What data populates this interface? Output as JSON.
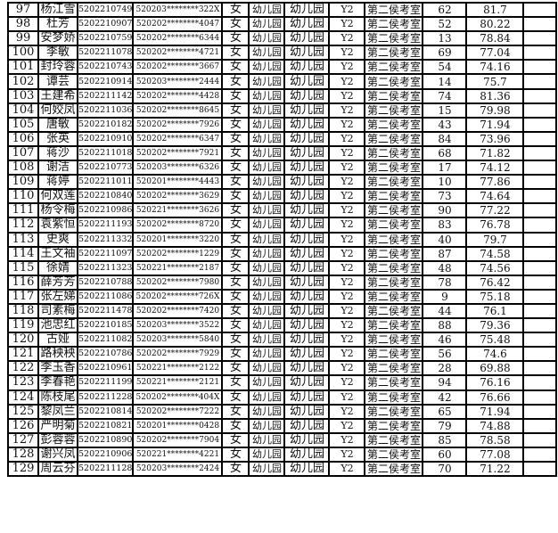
{
  "rows": [
    {
      "no": "97",
      "name": "杨江雪",
      "exam_id": "5202210749",
      "id_card": "520203********322X",
      "gender": "女",
      "unit": "幼儿园",
      "position": "幼儿园",
      "code": "Y2",
      "room": "第二侯考室",
      "seat": "62",
      "score": "81.7"
    },
    {
      "no": "98",
      "name": "杜芳",
      "exam_id": "5202210907",
      "id_card": "520202********4047",
      "gender": "女",
      "unit": "幼儿园",
      "position": "幼儿园",
      "code": "Y2",
      "room": "第二侯考室",
      "seat": "52",
      "score": "80.22"
    },
    {
      "no": "99",
      "name": "安梦娇",
      "exam_id": "5202210759",
      "id_card": "520202********6344",
      "gender": "女",
      "unit": "幼儿园",
      "position": "幼儿园",
      "code": "Y2",
      "room": "第二侯考室",
      "seat": "13",
      "score": "78.84"
    },
    {
      "no": "100",
      "name": "李敏",
      "exam_id": "5202211078",
      "id_card": "520202********4721",
      "gender": "女",
      "unit": "幼儿园",
      "position": "幼儿园",
      "code": "Y2",
      "room": "第二侯考室",
      "seat": "69",
      "score": "77.04"
    },
    {
      "no": "101",
      "name": "封玲蓉",
      "exam_id": "5202210743",
      "id_card": "520202********3667",
      "gender": "女",
      "unit": "幼儿园",
      "position": "幼儿园",
      "code": "Y2",
      "room": "第二侯考室",
      "seat": "54",
      "score": "74.16"
    },
    {
      "no": "102",
      "name": "谭芸",
      "exam_id": "5202210914",
      "id_card": "520203********2444",
      "gender": "女",
      "unit": "幼儿园",
      "position": "幼儿园",
      "code": "Y2",
      "room": "第二侯考室",
      "seat": "14",
      "score": "75.7"
    },
    {
      "no": "103",
      "name": "王建希",
      "exam_id": "5202211142",
      "id_card": "520202********4428",
      "gender": "女",
      "unit": "幼儿园",
      "position": "幼儿园",
      "code": "Y2",
      "room": "第二侯考室",
      "seat": "74",
      "score": "81.36"
    },
    {
      "no": "104",
      "name": "何姣凤",
      "exam_id": "5202211036",
      "id_card": "520202********8645",
      "gender": "女",
      "unit": "幼儿园",
      "position": "幼儿园",
      "code": "Y2",
      "room": "第二侯考室",
      "seat": "15",
      "score": "79.98"
    },
    {
      "no": "105",
      "name": "唐敏",
      "exam_id": "5202210182",
      "id_card": "520202********7926",
      "gender": "女",
      "unit": "幼儿园",
      "position": "幼儿园",
      "code": "Y2",
      "room": "第二侯考室",
      "seat": "43",
      "score": "71.94"
    },
    {
      "no": "106",
      "name": "张英",
      "exam_id": "5202210910",
      "id_card": "520202********6347",
      "gender": "女",
      "unit": "幼儿园",
      "position": "幼儿园",
      "code": "Y2",
      "room": "第二侯考室",
      "seat": "84",
      "score": "73.96"
    },
    {
      "no": "107",
      "name": "蒋沙",
      "exam_id": "5202211018",
      "id_card": "520202********7921",
      "gender": "女",
      "unit": "幼儿园",
      "position": "幼儿园",
      "code": "Y2",
      "room": "第二侯考室",
      "seat": "68",
      "score": "71.82"
    },
    {
      "no": "108",
      "name": "谢洁",
      "exam_id": "5202210773",
      "id_card": "520203********6326",
      "gender": "女",
      "unit": "幼儿园",
      "position": "幼儿园",
      "code": "Y2",
      "room": "第二侯考室",
      "seat": "17",
      "score": "74.12"
    },
    {
      "no": "109",
      "name": "蒋婷",
      "exam_id": "5202211011",
      "id_card": "520201********4443",
      "gender": "女",
      "unit": "幼儿园",
      "position": "幼儿园",
      "code": "Y2",
      "room": "第二侯考室",
      "seat": "10",
      "score": "77.86"
    },
    {
      "no": "110",
      "name": "何双莲",
      "exam_id": "5202210840",
      "id_card": "520202********3629",
      "gender": "女",
      "unit": "幼儿园",
      "position": "幼儿园",
      "code": "Y2",
      "room": "第二侯考室",
      "seat": "73",
      "score": "74.64"
    },
    {
      "no": "111",
      "name": "杨令梅",
      "exam_id": "5202210986",
      "id_card": "520221********3626",
      "gender": "女",
      "unit": "幼儿园",
      "position": "幼儿园",
      "code": "Y2",
      "room": "第二侯考室",
      "seat": "90",
      "score": "77.22"
    },
    {
      "no": "112",
      "name": "袁紫恒",
      "exam_id": "5202211193",
      "id_card": "520202********8720",
      "gender": "女",
      "unit": "幼儿园",
      "position": "幼儿园",
      "code": "Y2",
      "room": "第二侯考室",
      "seat": "83",
      "score": "76.78"
    },
    {
      "no": "113",
      "name": "史爽",
      "exam_id": "5202211332",
      "id_card": "520201********3220",
      "gender": "女",
      "unit": "幼儿园",
      "position": "幼儿园",
      "code": "Y2",
      "room": "第二侯考室",
      "seat": "40",
      "score": "79.7"
    },
    {
      "no": "114",
      "name": "王文袖",
      "exam_id": "5202211097",
      "id_card": "520202********1229",
      "gender": "女",
      "unit": "幼儿园",
      "position": "幼儿园",
      "code": "Y2",
      "room": "第二侯考室",
      "seat": "87",
      "score": "74.58"
    },
    {
      "no": "115",
      "name": "徐婧",
      "exam_id": "5202211323",
      "id_card": "520221********2187",
      "gender": "女",
      "unit": "幼儿园",
      "position": "幼儿园",
      "code": "Y2",
      "room": "第二侯考室",
      "seat": "48",
      "score": "74.56"
    },
    {
      "no": "116",
      "name": "薛芳芳",
      "exam_id": "5202210788",
      "id_card": "520202********7980",
      "gender": "女",
      "unit": "幼儿园",
      "position": "幼儿园",
      "code": "Y2",
      "room": "第二侯考室",
      "seat": "78",
      "score": "76.42"
    },
    {
      "no": "117",
      "name": "张左娣",
      "exam_id": "5202211086",
      "id_card": "520202********726X",
      "gender": "女",
      "unit": "幼儿园",
      "position": "幼儿园",
      "code": "Y2",
      "room": "第二侯考室",
      "seat": "9",
      "score": "75.18"
    },
    {
      "no": "118",
      "name": "司素梅",
      "exam_id": "5202211478",
      "id_card": "520202********7420",
      "gender": "女",
      "unit": "幼儿园",
      "position": "幼儿园",
      "code": "Y2",
      "room": "第二侯考室",
      "seat": "44",
      "score": "76.1"
    },
    {
      "no": "119",
      "name": "池忠红",
      "exam_id": "5202210185",
      "id_card": "520203********3522",
      "gender": "女",
      "unit": "幼儿园",
      "position": "幼儿园",
      "code": "Y2",
      "room": "第二侯考室",
      "seat": "88",
      "score": "79.36"
    },
    {
      "no": "120",
      "name": "古娅",
      "exam_id": "5202211082",
      "id_card": "520203********5840",
      "gender": "女",
      "unit": "幼儿园",
      "position": "幼儿园",
      "code": "Y2",
      "room": "第二侯考室",
      "seat": "46",
      "score": "75.48"
    },
    {
      "no": "121",
      "name": "路秧秧",
      "exam_id": "5202210786",
      "id_card": "520202********7929",
      "gender": "女",
      "unit": "幼儿园",
      "position": "幼儿园",
      "code": "Y2",
      "room": "第二侯考室",
      "seat": "56",
      "score": "74.6"
    },
    {
      "no": "122",
      "name": "李玉香",
      "exam_id": "5202210961",
      "id_card": "520221********2122",
      "gender": "女",
      "unit": "幼儿园",
      "position": "幼儿园",
      "code": "Y2",
      "room": "第二侯考室",
      "seat": "28",
      "score": "69.88"
    },
    {
      "no": "123",
      "name": "李春艳",
      "exam_id": "5202211199",
      "id_card": "520221********2121",
      "gender": "女",
      "unit": "幼儿园",
      "position": "幼儿园",
      "code": "Y2",
      "room": "第二侯考室",
      "seat": "94",
      "score": "76.16"
    },
    {
      "no": "124",
      "name": "陈枝尾",
      "exam_id": "5202211228",
      "id_card": "520202********404X",
      "gender": "女",
      "unit": "幼儿园",
      "position": "幼儿园",
      "code": "Y2",
      "room": "第二侯考室",
      "seat": "42",
      "score": "76.66"
    },
    {
      "no": "125",
      "name": "黎凤兰",
      "exam_id": "5202210814",
      "id_card": "520202********7222",
      "gender": "女",
      "unit": "幼儿园",
      "position": "幼儿园",
      "code": "Y2",
      "room": "第二侯考室",
      "seat": "65",
      "score": "71.94"
    },
    {
      "no": "126",
      "name": "严明菊",
      "exam_id": "5202210821",
      "id_card": "520201********0428",
      "gender": "女",
      "unit": "幼儿园",
      "position": "幼儿园",
      "code": "Y2",
      "room": "第二侯考室",
      "seat": "79",
      "score": "74.88"
    },
    {
      "no": "127",
      "name": "彭蓉蓉",
      "exam_id": "5202210890",
      "id_card": "520202********7904",
      "gender": "女",
      "unit": "幼儿园",
      "position": "幼儿园",
      "code": "Y2",
      "room": "第二侯考室",
      "seat": "85",
      "score": "78.58"
    },
    {
      "no": "128",
      "name": "谢兴凤",
      "exam_id": "5202210906",
      "id_card": "520221********4221",
      "gender": "女",
      "unit": "幼儿园",
      "position": "幼儿园",
      "code": "Y2",
      "room": "第二侯考室",
      "seat": "60",
      "score": "77.08"
    },
    {
      "no": "129",
      "name": "周云芬",
      "exam_id": "5202211128",
      "id_card": "520203********2424",
      "gender": "女",
      "unit": "幼儿园",
      "position": "幼儿园",
      "code": "Y2",
      "room": "第二侯考室",
      "seat": "70",
      "score": "71.22"
    }
  ]
}
